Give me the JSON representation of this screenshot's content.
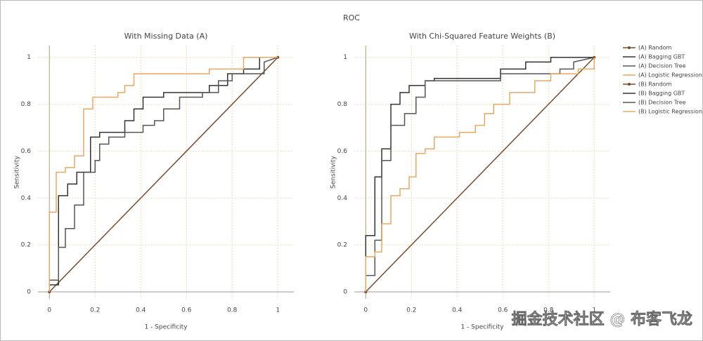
{
  "title": "ROC",
  "watermark": "掘金技术社区 @ 布客飞龙",
  "chart_data": [
    {
      "type": "line",
      "title": "With Missing Data (A)",
      "x_label": "1 - Specificity",
      "y_label": "Sensitivity",
      "xlim": [
        -0.05,
        1.07
      ],
      "ylim": [
        -0.03,
        1.05
      ],
      "xticks": [
        0,
        0.2,
        0.4,
        0.6,
        0.8,
        1
      ],
      "yticks": [
        0,
        0.2,
        0.4,
        0.6,
        0.8,
        1
      ],
      "grid": true,
      "series": [
        {
          "name": "(A) Random",
          "color": "#7a4a2a",
          "markers": true,
          "x": [
            0,
            1
          ],
          "values": [
            0,
            1
          ]
        },
        {
          "name": "(A) Bagging GBT",
          "color": "#333333",
          "x": [
            0,
            0,
            0.04,
            0.04,
            0.08,
            0.08,
            0.12,
            0.12,
            0.18,
            0.18,
            0.22,
            0.22,
            0.33,
            0.33,
            0.37,
            0.37,
            0.41,
            0.41,
            0.5,
            0.5,
            0.7,
            0.7,
            0.78,
            0.78,
            0.85,
            0.85,
            0.92,
            0.92,
            1
          ],
          "values": [
            0,
            0.03,
            0.03,
            0.41,
            0.41,
            0.46,
            0.46,
            0.51,
            0.51,
            0.66,
            0.66,
            0.68,
            0.68,
            0.73,
            0.73,
            0.78,
            0.78,
            0.83,
            0.83,
            0.85,
            0.85,
            0.88,
            0.88,
            0.93,
            0.93,
            0.95,
            0.95,
            1,
            1
          ]
        },
        {
          "name": "(A) Decision Tree",
          "color": "#555555",
          "x": [
            0,
            0,
            0.04,
            0.04,
            0.07,
            0.07,
            0.11,
            0.11,
            0.15,
            0.15,
            0.2,
            0.2,
            0.22,
            0.22,
            0.26,
            0.26,
            0.33,
            0.33,
            0.41,
            0.41,
            0.46,
            0.46,
            0.5,
            0.5,
            0.57,
            0.57,
            0.67,
            0.67,
            0.74,
            0.74,
            0.8,
            0.8,
            0.94,
            0.94,
            1
          ],
          "values": [
            0,
            0.05,
            0.05,
            0.19,
            0.19,
            0.27,
            0.27,
            0.37,
            0.37,
            0.51,
            0.51,
            0.56,
            0.56,
            0.63,
            0.63,
            0.66,
            0.66,
            0.68,
            0.68,
            0.71,
            0.71,
            0.73,
            0.73,
            0.78,
            0.78,
            0.83,
            0.83,
            0.85,
            0.85,
            0.9,
            0.9,
            0.93,
            0.93,
            0.98,
            1
          ]
        },
        {
          "name": "(A) Logistic Regression",
          "color": "#e8a860",
          "x": [
            0,
            0,
            0.03,
            0.03,
            0.07,
            0.07,
            0.11,
            0.11,
            0.15,
            0.15,
            0.19,
            0.19,
            0.3,
            0.3,
            0.33,
            0.33,
            0.37,
            0.37,
            0.7,
            0.7,
            0.85,
            0.85,
            1
          ],
          "values": [
            0,
            0.34,
            0.34,
            0.51,
            0.51,
            0.53,
            0.53,
            0.58,
            0.58,
            0.78,
            0.78,
            0.83,
            0.83,
            0.85,
            0.85,
            0.88,
            0.88,
            0.93,
            0.93,
            0.95,
            0.95,
            1,
            1
          ]
        }
      ]
    },
    {
      "type": "line",
      "title": "With Chi-Squared Feature Weights (B)",
      "x_label": "1 - Specificity",
      "y_label": "Sensitivity",
      "xlim": [
        -0.05,
        1.07
      ],
      "ylim": [
        -0.03,
        1.05
      ],
      "xticks": [
        0,
        0.2,
        0.4,
        0.6,
        0.8,
        1
      ],
      "yticks": [
        0,
        0.2,
        0.4,
        0.6,
        0.8,
        1
      ],
      "grid": true,
      "series": [
        {
          "name": "(B) Random",
          "color": "#7a4a2a",
          "markers": true,
          "x": [
            0,
            1
          ],
          "values": [
            0,
            1
          ]
        },
        {
          "name": "(B) Bagging GBT",
          "color": "#333333",
          "x": [
            0,
            0,
            0.04,
            0.04,
            0.07,
            0.07,
            0.11,
            0.11,
            0.15,
            0.15,
            0.19,
            0.19,
            0.26,
            0.26,
            0.3,
            0.3,
            0.59,
            0.59,
            0.7,
            0.7,
            0.81,
            0.81,
            1
          ],
          "values": [
            0,
            0.24,
            0.24,
            0.49,
            0.49,
            0.61,
            0.61,
            0.8,
            0.8,
            0.85,
            0.85,
            0.88,
            0.88,
            0.9,
            0.9,
            0.91,
            0.91,
            0.95,
            0.95,
            0.98,
            0.98,
            1,
            1
          ]
        },
        {
          "name": "(B) Decision Tree",
          "color": "#555555",
          "x": [
            0,
            0,
            0.04,
            0.04,
            0.07,
            0.07,
            0.11,
            0.11,
            0.17,
            0.17,
            0.22,
            0.22,
            0.26,
            0.26,
            0.59,
            0.59,
            0.85,
            0.85,
            0.91,
            0.91,
            1
          ],
          "values": [
            0,
            0.07,
            0.07,
            0.22,
            0.22,
            0.56,
            0.56,
            0.71,
            0.71,
            0.76,
            0.76,
            0.83,
            0.83,
            0.9,
            0.9,
            0.93,
            0.93,
            0.95,
            0.95,
            0.98,
            1
          ]
        },
        {
          "name": "(B) Logistic Regression",
          "color": "#e8a860",
          "x": [
            0,
            0,
            0.04,
            0.04,
            0.07,
            0.07,
            0.11,
            0.11,
            0.15,
            0.15,
            0.19,
            0.19,
            0.22,
            0.22,
            0.26,
            0.26,
            0.3,
            0.3,
            0.41,
            0.41,
            0.48,
            0.48,
            0.52,
            0.52,
            0.56,
            0.56,
            0.63,
            0.63,
            0.74,
            0.74,
            0.81,
            0.81,
            0.93,
            0.93,
            1,
            1
          ],
          "values": [
            0,
            0.15,
            0.15,
            0.17,
            0.17,
            0.29,
            0.29,
            0.41,
            0.41,
            0.44,
            0.44,
            0.49,
            0.49,
            0.59,
            0.59,
            0.61,
            0.61,
            0.66,
            0.66,
            0.68,
            0.68,
            0.71,
            0.71,
            0.76,
            0.76,
            0.8,
            0.8,
            0.85,
            0.85,
            0.9,
            0.9,
            0.93,
            0.93,
            0.95,
            0.95,
            1
          ]
        }
      ]
    }
  ]
}
